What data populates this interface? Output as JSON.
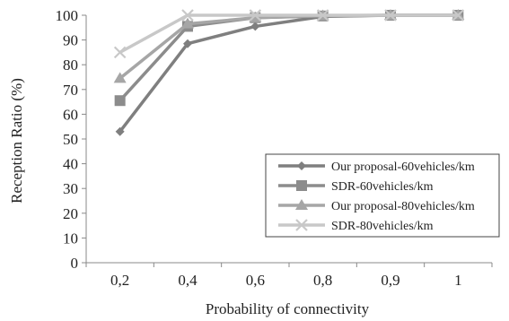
{
  "chart_data": {
    "type": "line",
    "title": "",
    "xlabel": "Probability of connectivity",
    "ylabel": "Reception Ratio (%)",
    "categories": [
      "0,2",
      "0,4",
      "0,6",
      "0,8",
      "0,9",
      "1"
    ],
    "ylim": [
      0,
      100
    ],
    "yticks": [
      0,
      10,
      20,
      30,
      40,
      50,
      60,
      70,
      80,
      90,
      100
    ],
    "grid": false,
    "legend_position": "bottom-right",
    "series": [
      {
        "name": "Our proposal-60vehicles/km",
        "marker": "diamond",
        "color": "#7f7f7f",
        "values": [
          53,
          88.5,
          95.5,
          99.5,
          100,
          100
        ]
      },
      {
        "name": "SDR-60vehicles/km",
        "marker": "square",
        "color": "#8c8c8c",
        "values": [
          65.5,
          95.5,
          99,
          99.7,
          100,
          100
        ]
      },
      {
        "name": "Our proposal-80vehicles/km",
        "marker": "triangle",
        "color": "#a6a6a6",
        "values": [
          74.5,
          96.5,
          99,
          99.8,
          100,
          100
        ]
      },
      {
        "name": "SDR-80vehicles/km",
        "marker": "x",
        "color": "#c8c8c8",
        "values": [
          85,
          100,
          100,
          100,
          100,
          100
        ]
      }
    ]
  }
}
